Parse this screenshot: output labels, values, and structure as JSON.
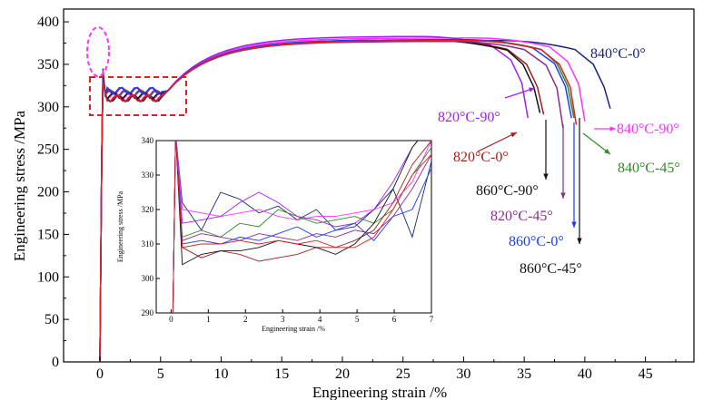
{
  "chart_data": [
    {
      "type": "line",
      "xlabel": "Engineering strain /%",
      "ylabel": "Engineering stress /MPa",
      "xlim": [
        -3,
        49
      ],
      "ylim": [
        0,
        415
      ],
      "xticks": [
        0,
        5,
        10,
        15,
        20,
        25,
        30,
        35,
        40,
        45
      ],
      "yticks": [
        0,
        50,
        100,
        150,
        200,
        250,
        300,
        350,
        400
      ],
      "grid": false,
      "series": [
        {
          "name": "840°C-0°",
          "color": "#1a237e",
          "fracture_strain": 42.1,
          "uts": 378,
          "final_stress": 298
        },
        {
          "name": "840°C-90°",
          "color": "#ff33ff",
          "fracture_strain": 40.0,
          "uts": 381,
          "final_stress": 283
        },
        {
          "name": "840°C-45°",
          "color": "#2e8b22",
          "fracture_strain": 39.1,
          "uts": 379,
          "final_stress": 287
        },
        {
          "name": "820°C-90°",
          "color": "#a020f0",
          "fracture_strain": 35.3,
          "uts": 383,
          "final_stress": 287
        },
        {
          "name": "820°C-0°",
          "color": "#a01e1e",
          "fracture_strain": 36.6,
          "uts": 378,
          "final_stress": 291
        },
        {
          "name": "860°C-90°",
          "color": "#111111",
          "fracture_strain": 36.3,
          "uts": 378,
          "final_stress": 293
        },
        {
          "name": "820°C-45°",
          "color": "#8b2c8b",
          "fracture_strain": 38.2,
          "uts": 377,
          "final_stress": 275
        },
        {
          "name": "860°C-0°",
          "color": "#1a3cf0",
          "fracture_strain": 38.9,
          "uts": 379,
          "final_stress": 287
        },
        {
          "name": "860°C-45°",
          "color": "#e02020",
          "fracture_strain": 39.3,
          "uts": 378,
          "final_stress": 279
        }
      ],
      "annotations": [
        {
          "text": "840°C-0°",
          "color": "#1a237e"
        },
        {
          "text": "820°C-90°",
          "color": "#a020f0"
        },
        {
          "text": "840°C-90°",
          "color": "#ff33ff"
        },
        {
          "text": "820°C-0°",
          "color": "#a01e1e"
        },
        {
          "text": "840°C-45°",
          "color": "#2e8b22"
        },
        {
          "text": "860°C-90°",
          "color": "#111111"
        },
        {
          "text": "820°C-45°",
          "color": "#8b2c8b"
        },
        {
          "text": "860°C-0°",
          "color": "#1a3cf0"
        },
        {
          "text": "860°C-45°",
          "color": "#111111"
        }
      ],
      "highlights": [
        {
          "shape": "ellipse",
          "style": "dashed",
          "color": "#ff33ff",
          "region": {
            "x": [
              -0.6,
              1.2
            ],
            "y": [
              335,
              400
            ]
          }
        },
        {
          "shape": "rect",
          "style": "dashed",
          "color": "#e02020",
          "region": {
            "x": [
              -0.5,
              7.3
            ],
            "y": [
              298,
              342
            ]
          }
        }
      ]
    },
    {
      "type": "line",
      "xlabel": "Engineering strain /%",
      "ylabel": "Engineering stress /MPa",
      "xlim": [
        -0.4,
        7
      ],
      "ylim": [
        290,
        340
      ],
      "xticks": [
        0,
        1,
        2,
        3,
        4,
        5,
        6,
        7
      ],
      "yticks": [
        290,
        300,
        310,
        320,
        330,
        340
      ],
      "grid": false,
      "series": [
        {
          "color": "#1a237e",
          "values_y": [
            322,
            314,
            325,
            323,
            319,
            321,
            317,
            320,
            314,
            315,
            320,
            326,
            312,
            334
          ]
        },
        {
          "color": "#ff33ff",
          "values_y": [
            320,
            319,
            318,
            319,
            320,
            318,
            317,
            318,
            318,
            319,
            320,
            322,
            328,
            340
          ]
        },
        {
          "color": "#2e8b22",
          "values_y": [
            312,
            314,
            312,
            316,
            315,
            320,
            318,
            316,
            317,
            318,
            316,
            320,
            330,
            338
          ]
        },
        {
          "color": "#a020f0",
          "values_y": [
            316,
            317,
            318,
            322,
            325,
            322,
            318,
            317,
            315,
            316,
            320,
            328,
            338,
            345
          ]
        },
        {
          "color": "#a01e1e",
          "values_y": [
            309,
            306,
            308,
            307,
            305,
            306,
            307,
            309,
            309,
            311,
            314,
            322,
            333,
            340
          ]
        },
        {
          "color": "#111111",
          "values_y": [
            304,
            307,
            308,
            308,
            309,
            311,
            310,
            309,
            307,
            310,
            316,
            326,
            338,
            345
          ]
        },
        {
          "color": "#8b2c8b",
          "values_y": [
            311,
            313,
            312,
            311,
            313,
            312,
            311,
            313,
            312,
            314,
            313,
            318,
            326,
            336
          ]
        },
        {
          "color": "#1a3cf0",
          "values_y": [
            310,
            311,
            310,
            312,
            311,
            313,
            315,
            312,
            314,
            316,
            311,
            318,
            320,
            332
          ]
        },
        {
          "color": "#e02020",
          "values_y": [
            309,
            310,
            310,
            311,
            310,
            311,
            310,
            311,
            309,
            309,
            312,
            320,
            330,
            336
          ]
        }
      ]
    }
  ]
}
